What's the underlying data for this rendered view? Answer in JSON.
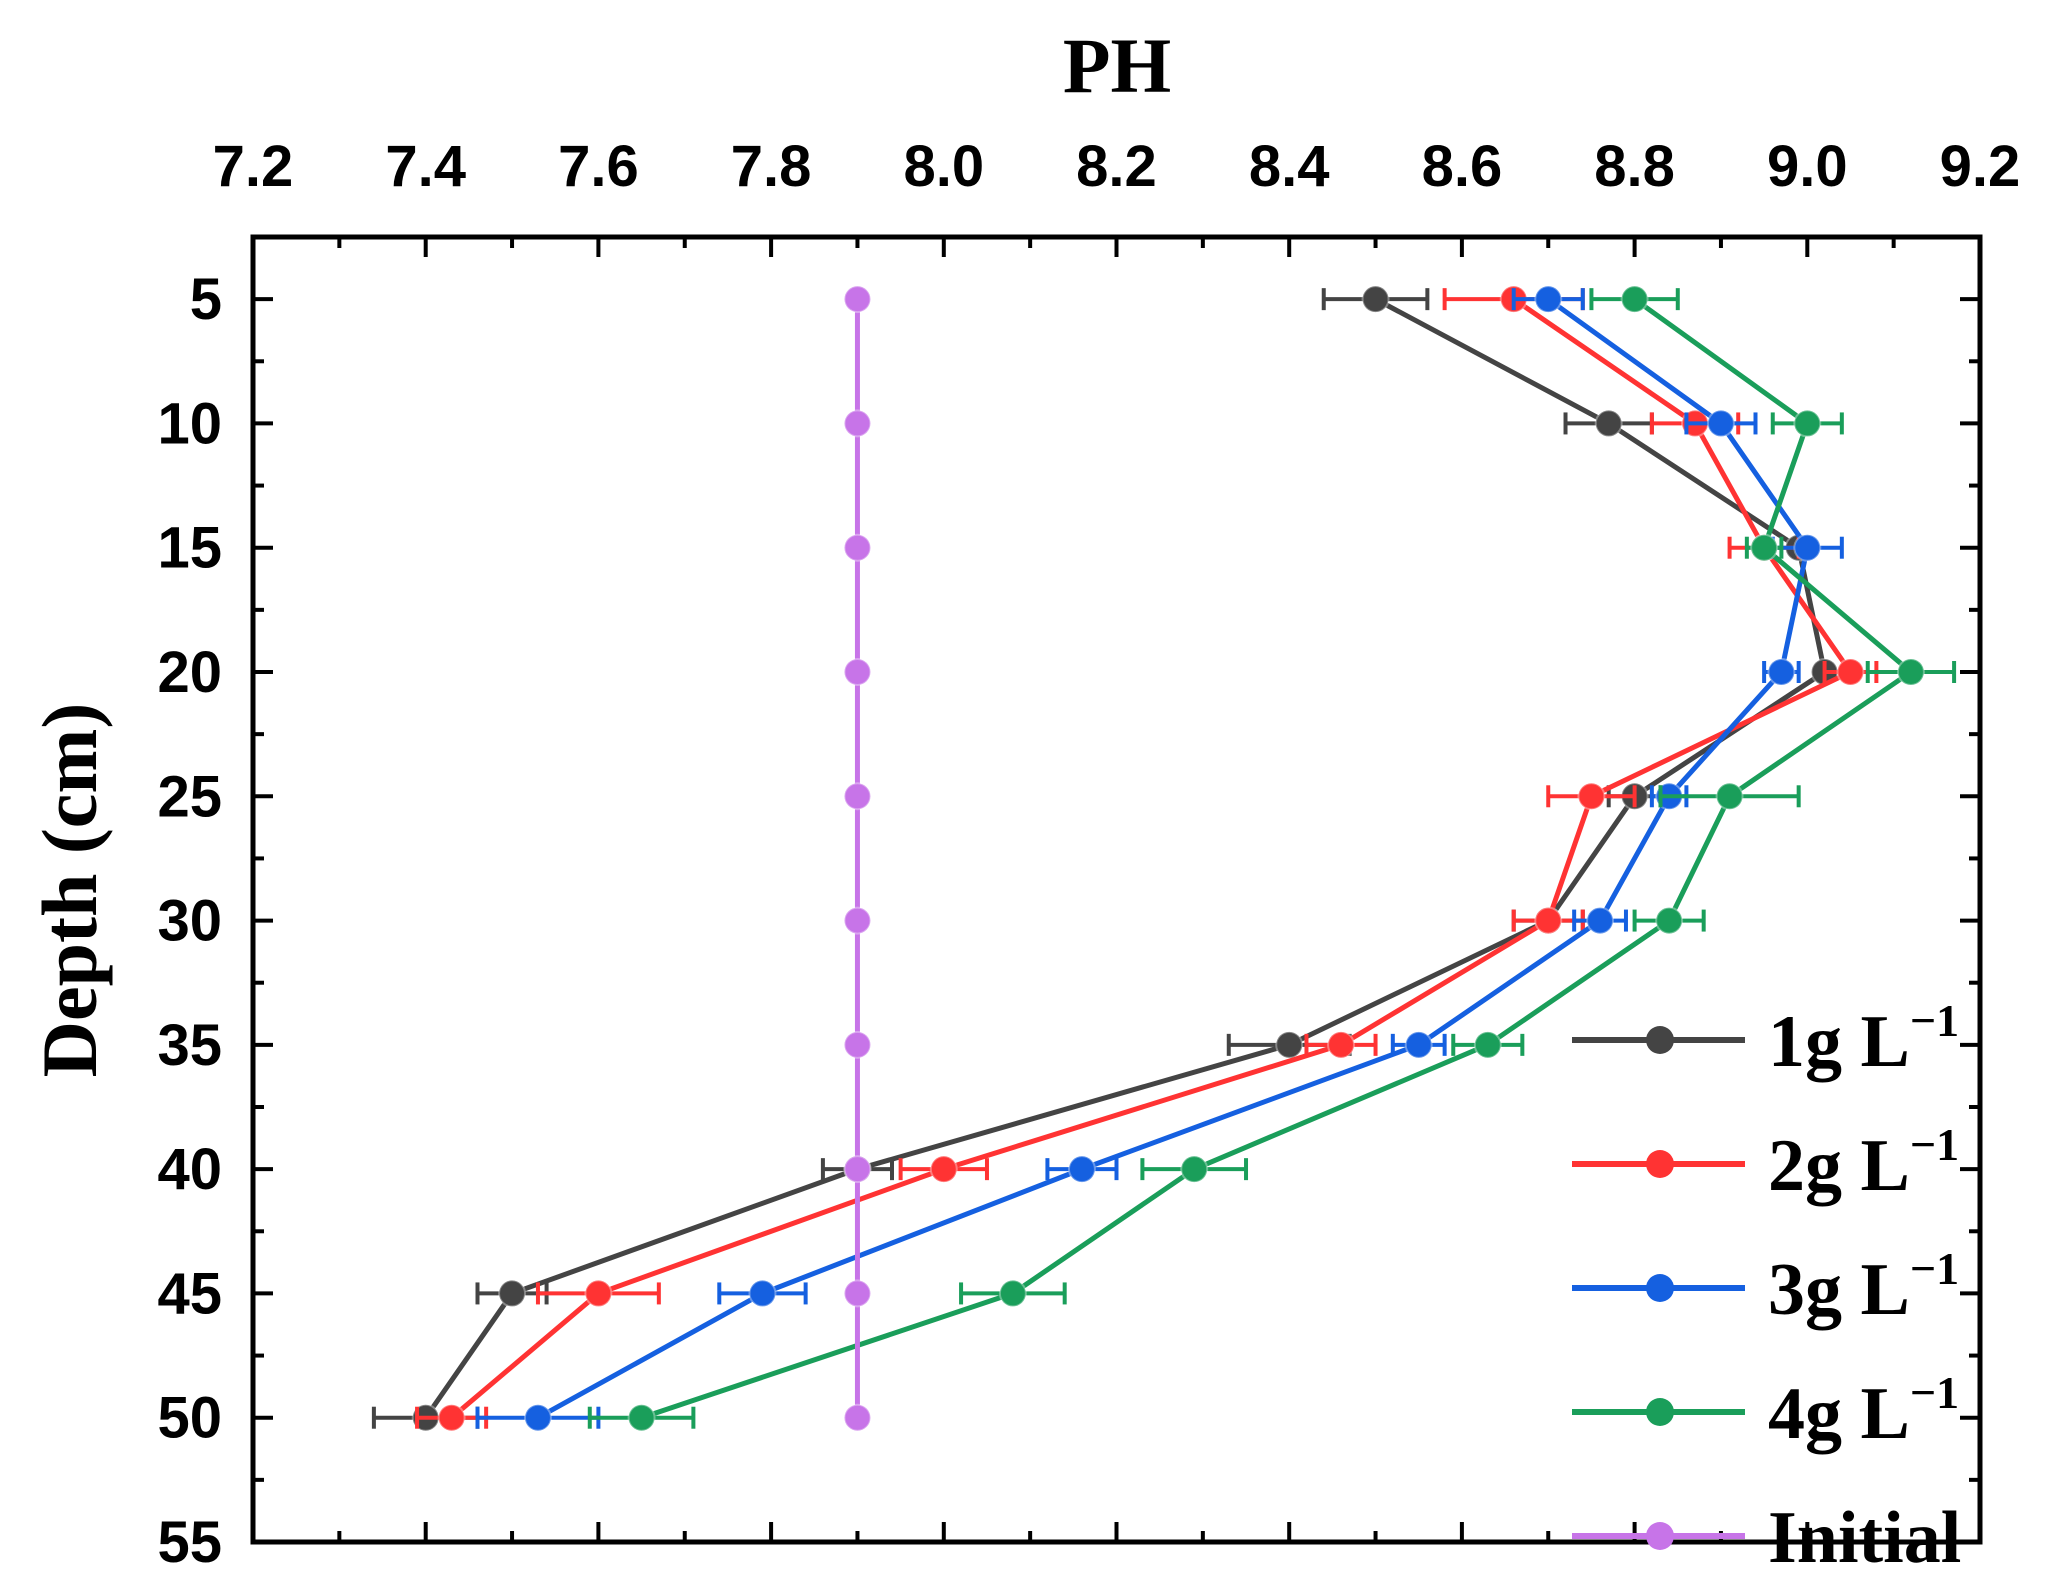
{
  "chart_data": {
    "type": "line",
    "title": "PH",
    "xlabel": "PH",
    "ylabel": "Depth (cm)",
    "xlim": [
      7.2,
      9.2
    ],
    "ylim": [
      55,
      2.5
    ],
    "x_axis_position": "top",
    "y_axis_inverted": true,
    "x_ticks": [
      "7.2",
      "7.4",
      "7.6",
      "7.8",
      "8.0",
      "8.2",
      "8.4",
      "8.6",
      "8.8",
      "9.0",
      "9.2"
    ],
    "y_ticks": [
      "5",
      "10",
      "15",
      "20",
      "25",
      "30",
      "35",
      "40",
      "45",
      "50",
      "55"
    ],
    "depths": [
      5,
      10,
      15,
      20,
      25,
      30,
      35,
      40,
      45,
      50
    ],
    "grid": false,
    "legend_position": "bottom-right",
    "series": [
      {
        "name": "1g L",
        "superscript": "−1",
        "color": "#444444",
        "x": [
          8.5,
          8.77,
          8.99,
          9.02,
          8.8,
          8.7,
          8.4,
          7.9,
          7.5,
          7.4
        ],
        "error": [
          0.06,
          0.05,
          0.0,
          0.0,
          0.03,
          0.04,
          0.07,
          0.04,
          0.04,
          0.06
        ]
      },
      {
        "name": "2g L",
        "superscript": "−1",
        "color": "#ff3333",
        "x": [
          8.66,
          8.87,
          8.95,
          9.05,
          8.75,
          8.7,
          8.46,
          8.0,
          7.6,
          7.43
        ],
        "error": [
          0.08,
          0.05,
          0.04,
          0.03,
          0.05,
          0.04,
          0.04,
          0.05,
          0.07,
          0.04
        ]
      },
      {
        "name": "3g L",
        "superscript": "−1",
        "color": "#1560e0",
        "x": [
          8.7,
          8.9,
          9.0,
          8.97,
          8.84,
          8.76,
          8.55,
          8.16,
          7.79,
          7.53
        ],
        "error": [
          0.04,
          0.04,
          0.04,
          0.02,
          0.02,
          0.03,
          0.03,
          0.04,
          0.05,
          0.07
        ]
      },
      {
        "name": "4g L",
        "superscript": "−1",
        "color": "#1a9e5a",
        "x": [
          8.8,
          9.0,
          8.95,
          9.12,
          8.91,
          8.84,
          8.63,
          8.29,
          8.08,
          7.65
        ],
        "error": [
          0.05,
          0.04,
          0.02,
          0.05,
          0.08,
          0.04,
          0.04,
          0.06,
          0.06,
          0.06
        ]
      },
      {
        "name": "Initial",
        "superscript": "",
        "color": "#c774e8",
        "x": [
          7.9,
          7.9,
          7.9,
          7.9,
          7.9,
          7.9,
          7.9,
          7.9,
          7.9,
          7.9
        ],
        "error": [
          0,
          0,
          0,
          0,
          0,
          0,
          0,
          0,
          0,
          0
        ]
      }
    ]
  }
}
